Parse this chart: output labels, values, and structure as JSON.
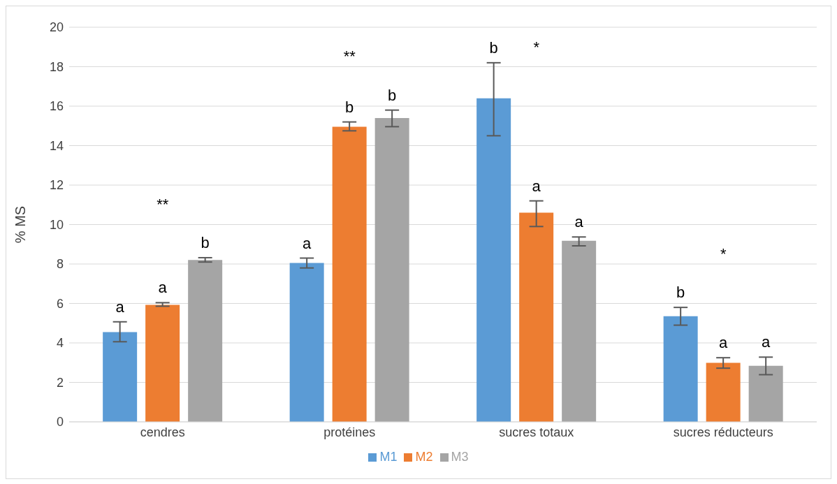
{
  "chart_data": {
    "type": "bar",
    "ylabel": "% MS",
    "categories": [
      "cendres",
      "protéines",
      "sucres totaux",
      "sucres réducteurs"
    ],
    "series": [
      {
        "name": "M1",
        "color": "#5b9bd5",
        "values": [
          4.55,
          8.05,
          16.4,
          5.35
        ],
        "errors": [
          [
            4.06,
            5.07
          ],
          [
            7.8,
            8.3
          ],
          [
            14.5,
            18.2
          ],
          [
            4.9,
            5.8
          ]
        ],
        "value_labels": [
          "a",
          "a",
          "b",
          "b"
        ]
      },
      {
        "name": "M2",
        "color": "#ed7d31",
        "values": [
          5.93,
          14.96,
          10.6,
          2.99
        ],
        "errors": [
          [
            5.86,
            6.04
          ],
          [
            14.75,
            15.2
          ],
          [
            9.9,
            11.2
          ],
          [
            2.72,
            3.25
          ]
        ],
        "value_labels": [
          "a",
          "b",
          "a",
          "a"
        ]
      },
      {
        "name": "M3",
        "color": "#a5a5a5",
        "values": [
          8.2,
          15.4,
          9.18,
          2.84
        ],
        "errors": [
          [
            8.1,
            8.32
          ],
          [
            14.96,
            15.8
          ],
          [
            8.92,
            9.37
          ],
          [
            2.39,
            3.28
          ]
        ],
        "value_labels": [
          "b",
          "b",
          "a",
          "a"
        ]
      }
    ],
    "annotations": [
      "**",
      "**",
      "*",
      "*"
    ],
    "ylim": [
      0,
      20
    ],
    "yticks": [
      0,
      2,
      4,
      6,
      8,
      10,
      12,
      14,
      16,
      18,
      20
    ],
    "grid": "y",
    "legend": "bottom"
  }
}
